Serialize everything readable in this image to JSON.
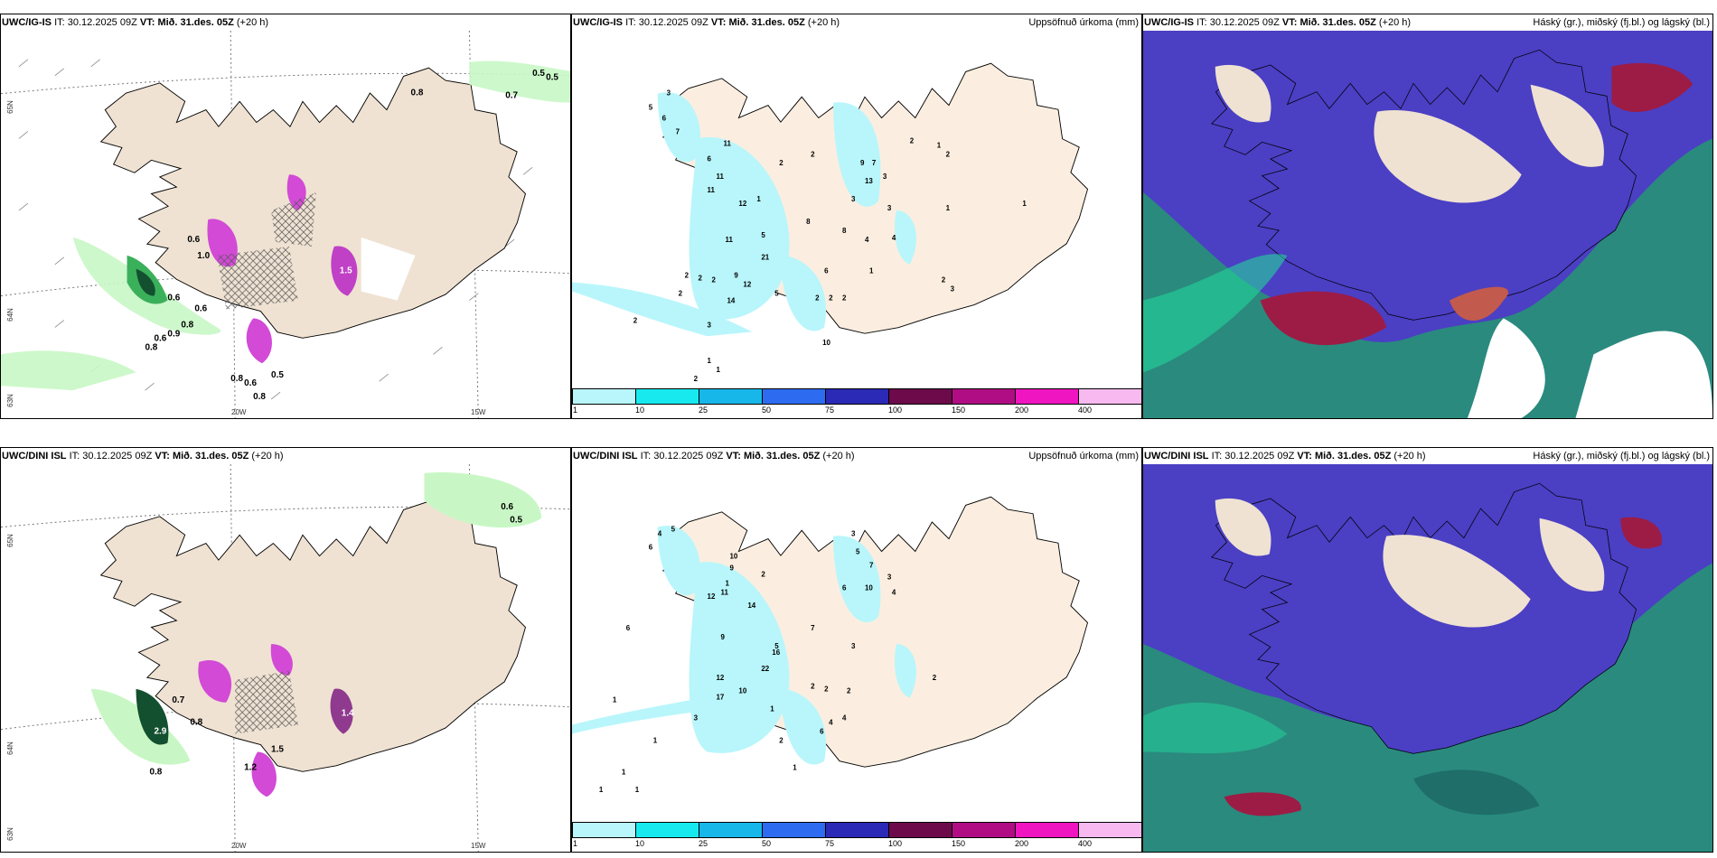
{
  "colors": {
    "land": "#efe2d2",
    "sea": "#ffffff",
    "precip_light": "#c8f7c5",
    "precip_green": "#3bb05a",
    "precip_dark": "#13502f",
    "snow_pink": "#d24ad6",
    "snow_light": "#f3b8f5",
    "acc_cyan": "#b8f6fb",
    "cloud_high": "#9d1c45",
    "cloud_mid": "#4b3fc4",
    "cloud_low": "#1d7a73",
    "cloud_low_edge": "#23d69b"
  },
  "rows": [
    {
      "id": "ig-is",
      "panels": [
        {
          "model": "UWC/IG-IS",
          "it_prefix": "IT:",
          "it_value": "30.12.2025 09Z",
          "vt_prefix": "VT:",
          "vt_value": "Mið. 31.des. 05Z",
          "lead": "(+20 h)",
          "right_title": "",
          "lat_labels": [
            "65N",
            "64N",
            "63N"
          ],
          "lon_labels": [
            "20W",
            "15W"
          ],
          "values": [
            "0.5",
            "0.5",
            "0.8",
            "0.7",
            "0.6",
            "1.0",
            "0.6",
            "0.6",
            "0.8",
            "0.9",
            "0.6",
            "0.8",
            "0.8",
            "0.6",
            "0.8",
            "0.5",
            "1.5"
          ]
        },
        {
          "model": "UWC/IG-IS",
          "it_prefix": "IT:",
          "it_value": "30.12.2025 09Z",
          "vt_prefix": "VT:",
          "vt_value": "Mið. 31.des. 05Z",
          "lead": "(+20 h)",
          "right_title": "Uppsöfnuð úrkoma (mm)",
          "values": [
            "3",
            "5",
            "6",
            "7",
            "11",
            "6",
            "11",
            "11",
            "12",
            "1",
            "2",
            "2",
            "9",
            "7",
            "13",
            "3",
            "2",
            "1",
            "3",
            "11",
            "5",
            "21",
            "8",
            "4",
            "9",
            "12",
            "5",
            "2",
            "2",
            "2",
            "2",
            "2",
            "14",
            "3",
            "10",
            "1",
            "1",
            "2",
            "2",
            "2",
            "2",
            "1",
            "1",
            "2",
            "3",
            "4",
            "1",
            "2",
            "3",
            "6",
            "8"
          ]
        },
        {
          "model": "UWC/IG-IS",
          "it_prefix": "IT:",
          "it_value": "30.12.2025 09Z",
          "vt_prefix": "VT:",
          "vt_value": "Mið. 31.des. 05Z",
          "lead": "(+20 h)",
          "right_title": "Háský (gr.), miðský (fj.bl.) og lágský (bl.)"
        }
      ]
    },
    {
      "id": "dini-isl",
      "panels": [
        {
          "model": "UWC/DINI ISL",
          "it_prefix": "IT:",
          "it_value": "30.12.2025 09Z",
          "vt_prefix": "VT:",
          "vt_value": "Mið. 31.des. 05Z",
          "lead": "(+20 h)",
          "right_title": "",
          "lat_labels": [
            "65N",
            "64N",
            "63N"
          ],
          "lon_labels": [
            "20W",
            "15W"
          ],
          "values": [
            "0.6",
            "0.5",
            "0.7",
            "2.9",
            "0.8",
            "1.4",
            "1.5",
            "0.8",
            "1.2"
          ]
        },
        {
          "model": "UWC/DINI ISL",
          "it_prefix": "IT:",
          "it_value": "30.12.2025 09Z",
          "vt_prefix": "VT:",
          "vt_value": "Mið. 31.des. 05Z",
          "lead": "(+20 h)",
          "right_title": "Uppsöfnuð úrkoma (mm)",
          "values": [
            "4",
            "5",
            "6",
            "10",
            "9",
            "12",
            "11",
            "14",
            "2",
            "1",
            "3",
            "5",
            "7",
            "10",
            "3",
            "4",
            "6",
            "9",
            "6",
            "5",
            "22",
            "16",
            "7",
            "3",
            "12",
            "17",
            "10",
            "1",
            "2",
            "2",
            "2",
            "3",
            "4",
            "6",
            "1",
            "1",
            "1",
            "1",
            "1",
            "2",
            "1",
            "4",
            "2"
          ]
        },
        {
          "model": "UWC/DINI ISL",
          "it_prefix": "IT:",
          "it_value": "30.12.2025 09Z",
          "vt_prefix": "VT:",
          "vt_value": "Mið. 31.des. 05Z",
          "lead": "(+20 h)",
          "right_title": "Háský (gr.), miðský (fj.bl.) og lágský (bl.)"
        }
      ]
    }
  ],
  "colorbar": {
    "labels": [
      "1",
      "10",
      "25",
      "50",
      "75",
      "100",
      "150",
      "200",
      "400"
    ],
    "colors": [
      "#b8f6fb",
      "#18e9ef",
      "#18b7ea",
      "#2d6cf0",
      "#2a2ab6",
      "#6d0a4a",
      "#b00d84",
      "#ef15c0",
      "#f8b9f1"
    ]
  }
}
